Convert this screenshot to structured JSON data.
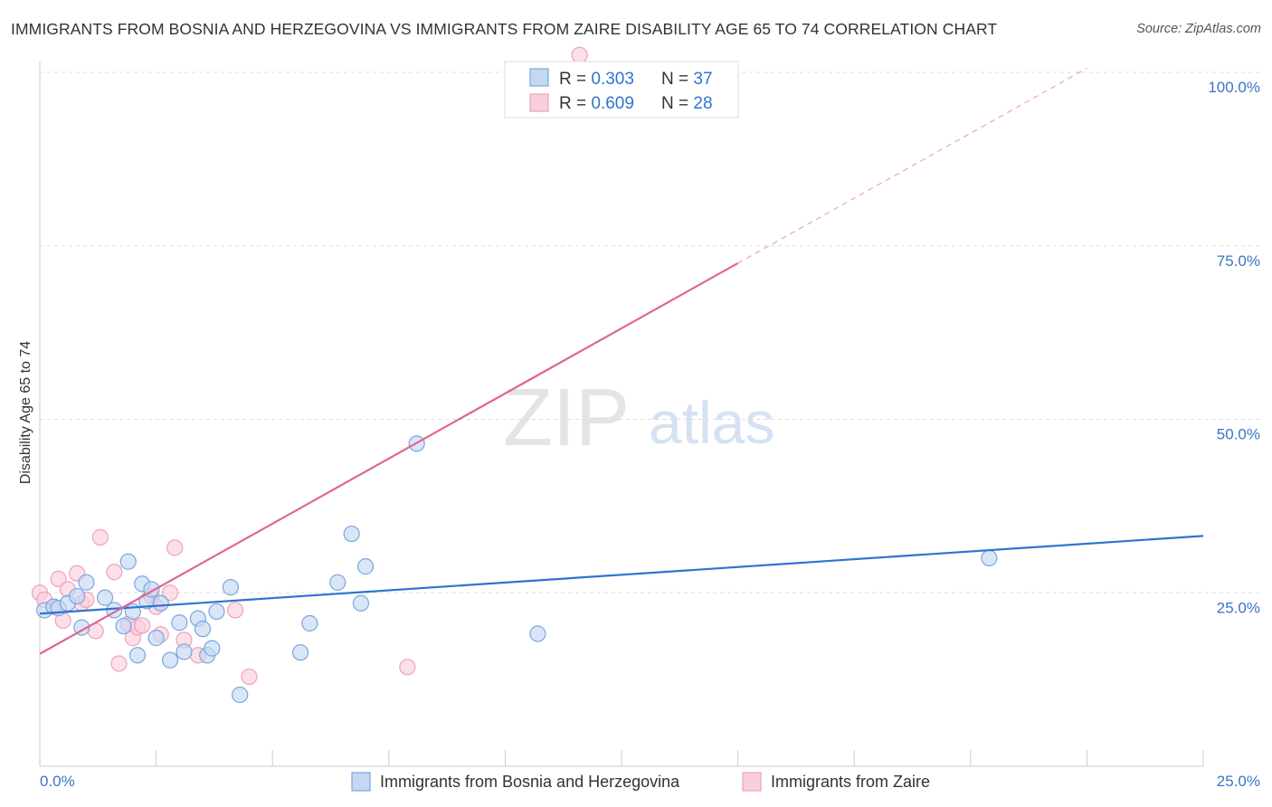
{
  "header": {
    "title": "IMMIGRANTS FROM BOSNIA AND HERZEGOVINA VS IMMIGRANTS FROM ZAIRE DISABILITY AGE 65 TO 74 CORRELATION CHART",
    "source": "Source: ZipAtlas.com"
  },
  "watermark": {
    "zip": "ZIP",
    "atlas": "atlas"
  },
  "colors": {
    "blue": "#2f74cf",
    "blue_fill": "#c4d8f2",
    "blue_stroke": "#7aa6df",
    "pink": "#e06693",
    "pink_fill": "#f9cfdc",
    "pink_stroke": "#eea1bb",
    "grid": "#dddddd",
    "axis_text": "#3a75c4"
  },
  "chart_data": {
    "type": "scatter",
    "title": "IMMIGRANTS FROM BOSNIA AND HERZEGOVINA VS IMMIGRANTS FROM ZAIRE DISABILITY AGE 65 TO 74 CORRELATION CHART",
    "xlabel": "",
    "ylabel": "Disability Age 65 to 74",
    "xlim": [
      0,
      25
    ],
    "ylim": [
      0,
      100
    ],
    "x_tick_labels": [
      "0.0%",
      "25.0%"
    ],
    "y_ticks": [
      25,
      50,
      75,
      100
    ],
    "y_tick_labels": [
      "25.0%",
      "50.0%",
      "75.0%",
      "100.0%"
    ],
    "grid": true,
    "legend_position": "top-center",
    "stats": [
      {
        "r_label": "R = ",
        "r_value": "0.303",
        "n_label": "N = ",
        "n_value": "37"
      },
      {
        "r_label": "R = ",
        "r_value": "0.609",
        "n_label": "N = ",
        "n_value": "28"
      }
    ],
    "series": [
      {
        "name": "Immigrants from Bosnia and Herzegovina",
        "color": "#2f74cf",
        "trend": {
          "x0": 0,
          "y0": 22.0,
          "x1": 25,
          "y1": 33.2,
          "dashed_to": null
        },
        "points": [
          [
            0.1,
            22.5
          ],
          [
            0.3,
            23.0
          ],
          [
            0.4,
            22.8
          ],
          [
            0.6,
            23.5
          ],
          [
            0.8,
            24.5
          ],
          [
            1.0,
            26.5
          ],
          [
            0.9,
            20.0
          ],
          [
            1.4,
            24.3
          ],
          [
            1.6,
            22.5
          ],
          [
            1.8,
            20.2
          ],
          [
            1.9,
            29.5
          ],
          [
            2.0,
            22.3
          ],
          [
            2.1,
            16.0
          ],
          [
            2.2,
            26.3
          ],
          [
            2.3,
            23.8
          ],
          [
            2.4,
            25.5
          ],
          [
            2.5,
            18.5
          ],
          [
            2.6,
            23.5
          ],
          [
            2.8,
            15.3
          ],
          [
            3.0,
            20.7
          ],
          [
            3.1,
            16.5
          ],
          [
            3.4,
            21.3
          ],
          [
            3.5,
            19.8
          ],
          [
            3.6,
            16.0
          ],
          [
            3.7,
            17.0
          ],
          [
            4.1,
            25.8
          ],
          [
            3.8,
            22.3
          ],
          [
            4.3,
            10.3
          ],
          [
            5.6,
            16.4
          ],
          [
            5.8,
            20.6
          ],
          [
            6.4,
            26.5
          ],
          [
            6.7,
            33.5
          ],
          [
            6.9,
            23.5
          ],
          [
            7.0,
            28.8
          ],
          [
            8.1,
            46.5
          ],
          [
            10.7,
            19.1
          ],
          [
            20.4,
            30.0
          ]
        ]
      },
      {
        "name": "Immigrants from Zaire",
        "color": "#e06693",
        "trend": {
          "x0": 0,
          "y0": 16.2,
          "x1": 15,
          "y1": 72.5,
          "dashed_to": {
            "x": 22.5,
            "y": 100.6
          }
        },
        "points": [
          [
            0.0,
            25.0
          ],
          [
            0.1,
            24.0
          ],
          [
            0.3,
            23.0
          ],
          [
            0.4,
            27.0
          ],
          [
            0.5,
            21.0
          ],
          [
            0.6,
            25.5
          ],
          [
            0.8,
            27.8
          ],
          [
            0.9,
            23.5
          ],
          [
            1.0,
            24.0
          ],
          [
            1.2,
            19.5
          ],
          [
            1.3,
            33.0
          ],
          [
            1.6,
            28.0
          ],
          [
            1.7,
            14.8
          ],
          [
            1.9,
            20.5
          ],
          [
            2.0,
            18.5
          ],
          [
            2.1,
            20.0
          ],
          [
            2.2,
            20.3
          ],
          [
            2.4,
            24.5
          ],
          [
            2.5,
            23.0
          ],
          [
            2.6,
            19.0
          ],
          [
            2.8,
            25.0
          ],
          [
            2.9,
            31.5
          ],
          [
            3.1,
            18.2
          ],
          [
            3.4,
            16.0
          ],
          [
            4.2,
            22.5
          ],
          [
            4.5,
            12.9
          ],
          [
            7.9,
            14.3
          ],
          [
            11.6,
            102.5
          ]
        ]
      }
    ]
  },
  "legend": {
    "items": [
      {
        "label": "Immigrants from Bosnia and Herzegovina"
      },
      {
        "label": "Immigrants from Zaire"
      }
    ]
  }
}
